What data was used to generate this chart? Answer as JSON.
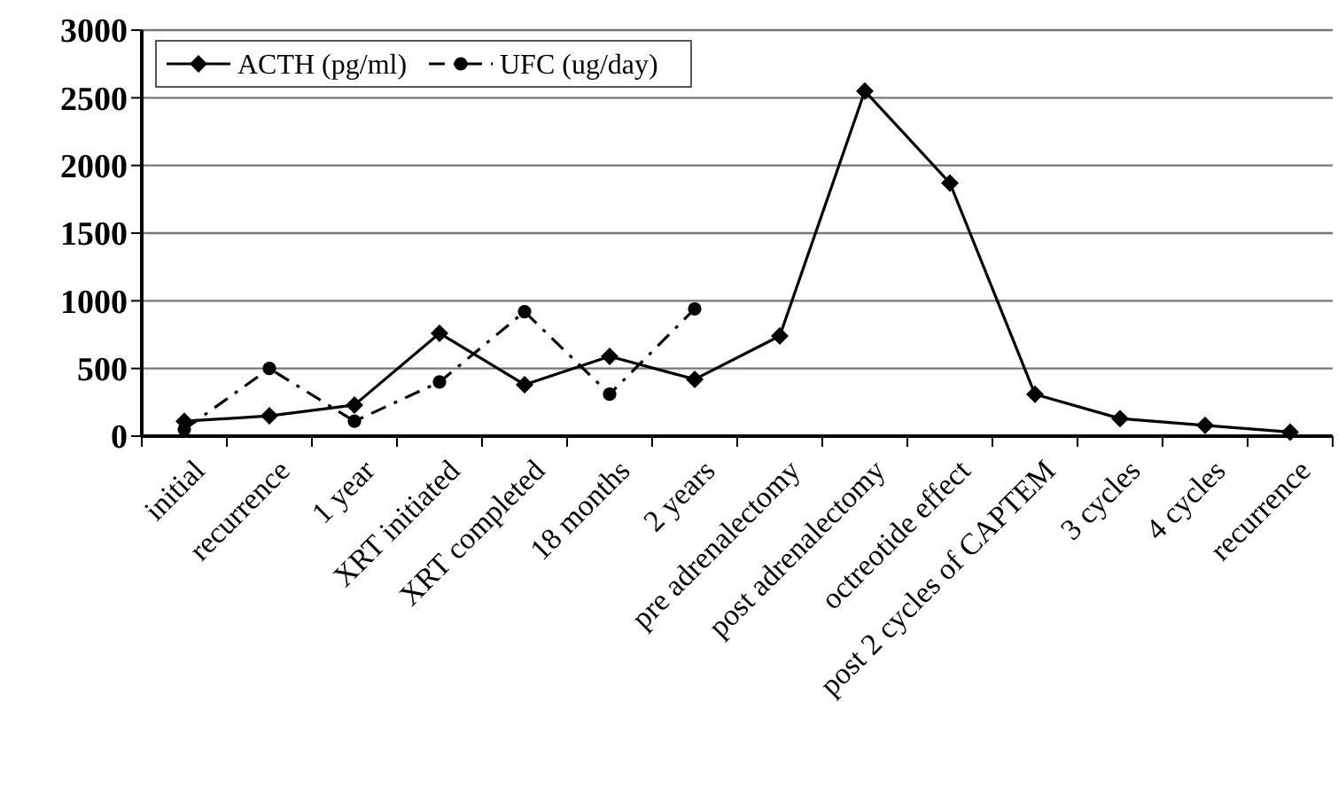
{
  "chart_data": {
    "type": "line",
    "categories": [
      "initial",
      "recurrence",
      "1 year",
      "XRT initiated",
      "XRT completed",
      "18 months",
      "2 years",
      "pre adrenalectomy",
      "post adrenalectomy",
      "octreotide effect",
      "post 2 cycles of CAPTEM",
      "3 cycles",
      "4 cycles",
      "recurrence"
    ],
    "series": [
      {
        "name": "ACTH (pg/ml)",
        "color": "#000000",
        "marker": "diamond",
        "line_style": "solid",
        "values": [
          110,
          150,
          230,
          760,
          380,
          590,
          420,
          740,
          2550,
          1870,
          310,
          130,
          80,
          30
        ]
      },
      {
        "name": "UFC (ug/day)",
        "color": "#000000",
        "marker": "circle",
        "line_style": "dashed",
        "values": [
          50,
          500,
          110,
          400,
          920,
          310,
          940,
          null,
          null,
          null,
          null,
          null,
          null,
          null
        ]
      }
    ],
    "ylim": [
      0,
      3000
    ],
    "yticks": [
      0,
      500,
      1000,
      1500,
      2000,
      2500,
      3000
    ],
    "grid": "y",
    "legend": "top left"
  }
}
